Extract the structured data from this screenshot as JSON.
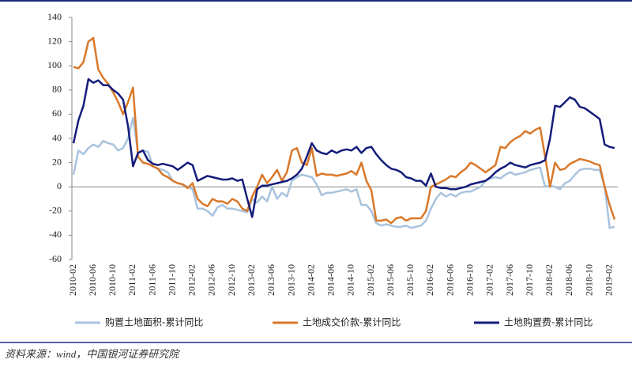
{
  "chart_data": {
    "type": "line",
    "categories": [
      "2010-02",
      null,
      null,
      null,
      "2010-06",
      null,
      null,
      null,
      "2010-10",
      null,
      null,
      null,
      "2011-02",
      null,
      null,
      null,
      "2011-06",
      null,
      null,
      null,
      "2011-10",
      null,
      null,
      null,
      "2012-02",
      null,
      null,
      null,
      "2012-06",
      null,
      null,
      null,
      "2012-10",
      null,
      null,
      null,
      "2013-02",
      null,
      null,
      null,
      "2013-06",
      null,
      null,
      null,
      "2013-10",
      null,
      null,
      null,
      "2014-02",
      null,
      null,
      null,
      "2014-06",
      null,
      null,
      null,
      "2014-10",
      null,
      null,
      null,
      "2015-02",
      null,
      null,
      null,
      "2015-06",
      null,
      null,
      null,
      "2015-10",
      null,
      null,
      null,
      "2016-02",
      null,
      null,
      null,
      "2016-06",
      null,
      null,
      null,
      "2016-10",
      null,
      null,
      null,
      "2017-02",
      null,
      null,
      null,
      "2017-06",
      null,
      null,
      null,
      "2017-10",
      null,
      null,
      null,
      "2018-02",
      null,
      null,
      null,
      "2018-06",
      null,
      null,
      null,
      "2018-10",
      null,
      null,
      null,
      "2019-02",
      null
    ],
    "series": [
      {
        "name": "购置土地面积-累计同比",
        "color": "#a9c3de",
        "values": [
          10,
          30,
          27,
          32,
          35,
          33,
          38,
          36,
          35,
          30,
          32,
          40,
          57,
          28,
          30,
          29,
          17,
          15,
          14,
          12,
          5,
          3,
          2,
          0,
          -2,
          -18,
          -18,
          -20,
          -24,
          -17,
          -15,
          -18,
          -18,
          -19,
          -20,
          -21,
          -10,
          -13,
          -8,
          -12,
          0,
          -10,
          -5,
          -8,
          5,
          8,
          10,
          9,
          8,
          2,
          -7,
          -5,
          -5,
          -4,
          -3,
          -2,
          -4,
          -2,
          -15,
          -15,
          -20,
          -30,
          -32,
          -31,
          -32,
          -33,
          -33,
          -32,
          -34,
          -33,
          -32,
          -28,
          -18,
          -10,
          -5,
          -8,
          -6,
          -8,
          -5,
          -4,
          -4,
          -2,
          0,
          5,
          7,
          8,
          7,
          10,
          12,
          10,
          11,
          12,
          14,
          15,
          16,
          0,
          1,
          0,
          -2,
          3,
          5,
          10,
          14,
          15,
          15,
          14,
          14,
          0,
          -34,
          -33
        ]
      },
      {
        "name": "土地成交价款-累计同比",
        "color": "#d9782a",
        "values": [
          99,
          98,
          103,
          120,
          123,
          97,
          90,
          85,
          78,
          70,
          60,
          70,
          82,
          25,
          20,
          19,
          17,
          15,
          10,
          8,
          5,
          3,
          2,
          -1,
          3,
          -10,
          -14,
          -16,
          -10,
          -12,
          -12,
          -14,
          -10,
          -12,
          -18,
          -20,
          -8,
          0,
          10,
          3,
          8,
          14,
          5,
          12,
          30,
          32,
          20,
          18,
          32,
          9,
          11,
          10,
          10,
          9,
          10,
          11,
          13,
          10,
          20,
          5,
          -3,
          -28,
          -28,
          -27,
          -30,
          -26,
          -25,
          -28,
          -26,
          -26,
          -26,
          -20,
          0,
          2,
          4,
          6,
          9,
          8,
          12,
          15,
          20,
          18,
          15,
          12,
          15,
          18,
          33,
          32,
          37,
          40,
          42,
          46,
          44,
          47,
          49,
          25,
          0,
          20,
          14,
          15,
          19,
          21,
          23,
          22,
          21,
          19,
          18,
          0,
          -15,
          -27
        ]
      },
      {
        "name": "土地购置费-累计同比",
        "color": "#141c7a",
        "values": [
          36,
          55,
          67,
          89,
          86,
          88,
          84,
          84,
          80,
          77,
          72,
          50,
          17,
          28,
          30,
          22,
          19,
          18,
          19,
          18,
          17,
          14,
          17,
          20,
          18,
          5,
          7,
          9,
          8,
          7,
          6,
          6,
          7,
          5,
          6,
          -10,
          -25,
          -2,
          1,
          1,
          2,
          3,
          4,
          5,
          7,
          10,
          15,
          25,
          36,
          30,
          28,
          27,
          30,
          28,
          30,
          31,
          30,
          33,
          28,
          32,
          33,
          27,
          22,
          18,
          15,
          14,
          12,
          8,
          7,
          5,
          5,
          1,
          11,
          0,
          -1,
          -1,
          -2,
          -2,
          -1,
          0,
          2,
          3,
          4,
          5,
          8,
          12,
          15,
          17,
          20,
          18,
          17,
          16,
          18,
          19,
          20,
          22,
          40,
          67,
          66,
          70,
          74,
          72,
          66,
          65,
          62,
          59,
          56,
          35,
          33,
          32
        ]
      }
    ],
    "ylim": [
      -60,
      140
    ],
    "yticks": [
      -60,
      -40,
      -20,
      0,
      20,
      40,
      60,
      80,
      100,
      120,
      140
    ],
    "source": "资料来源：wind，中国银河证券研究院"
  }
}
